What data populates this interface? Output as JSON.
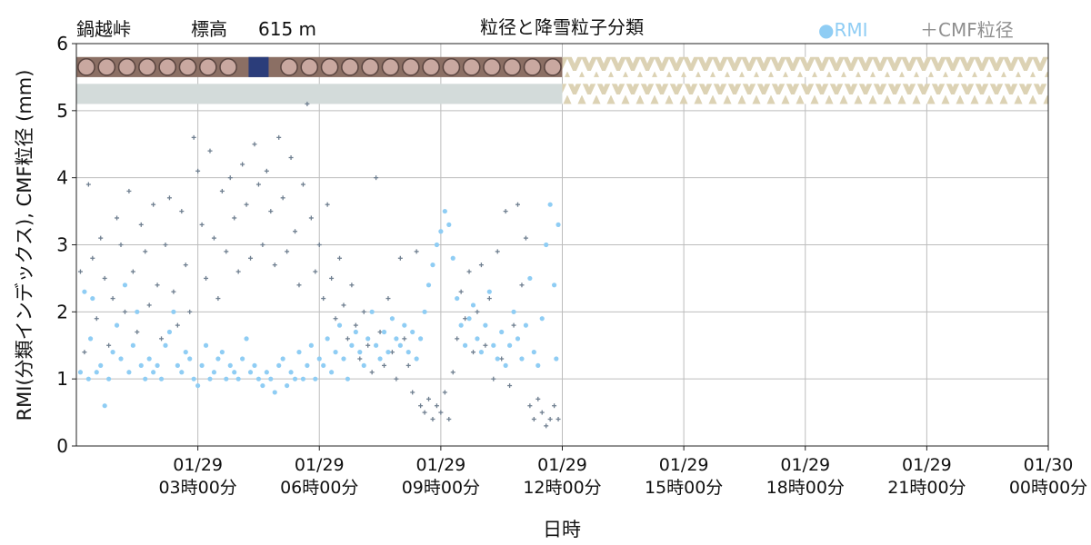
{
  "header": {
    "station": "鍋越峠",
    "elevation_label": "標高",
    "elevation_value": "615 m",
    "title": "粒径と降雪粒子分類",
    "legend_rmi": "●RMI",
    "legend_cmf": "＋CMF粒径"
  },
  "colors": {
    "rmi": "#8fcdf4",
    "cmf": "#6f7f90",
    "grid": "#bdbdbd",
    "graupel_band": "#8b6f64",
    "snow_icon": "#2b3d7a",
    "gray_band": "#d3dbda",
    "no_data_band": "#dcd2b4"
  },
  "chart_data": {
    "type": "scatter",
    "title": "粒径と降雪粒子分類",
    "xlabel": "日時",
    "ylabel": "RMI(分類インデックス), CMF粒径 (mm)",
    "x_range_hours": [
      0,
      24
    ],
    "ylim": [
      0,
      6
    ],
    "yticks": [
      "0",
      "1",
      "2",
      "3",
      "4",
      "5",
      "6"
    ],
    "xticks": [
      {
        "hours": 3,
        "date": "01/29",
        "time": "03時00分"
      },
      {
        "hours": 6,
        "date": "01/29",
        "time": "06時00分"
      },
      {
        "hours": 9,
        "date": "01/29",
        "time": "09時00分"
      },
      {
        "hours": 12,
        "date": "01/29",
        "time": "12時00分"
      },
      {
        "hours": 15,
        "date": "01/29",
        "time": "15時00分"
      },
      {
        "hours": 18,
        "date": "01/29",
        "time": "18時00分"
      },
      {
        "hours": 21,
        "date": "01/29",
        "time": "21時00分"
      },
      {
        "hours": 24,
        "date": "01/30",
        "time": "00時00分"
      }
    ],
    "grid": true,
    "legend_position": "top-right",
    "data_end_hours": 12,
    "graupel_strip": {
      "y_range": [
        5.5,
        5.8
      ],
      "snow_icon_hours": 4.5
    },
    "gray_strip": {
      "y_range": [
        5.1,
        5.4
      ]
    },
    "series": [
      {
        "name": "RMI",
        "marker": "dot",
        "points": [
          [
            0.1,
            1.1
          ],
          [
            0.2,
            2.3
          ],
          [
            0.3,
            1.0
          ],
          [
            0.35,
            1.6
          ],
          [
            0.4,
            2.2
          ],
          [
            0.5,
            1.1
          ],
          [
            0.6,
            1.2
          ],
          [
            0.7,
            0.6
          ],
          [
            0.8,
            1.0
          ],
          [
            0.9,
            1.4
          ],
          [
            1.0,
            1.8
          ],
          [
            1.1,
            1.3
          ],
          [
            1.2,
            2.4
          ],
          [
            1.3,
            1.1
          ],
          [
            1.4,
            1.5
          ],
          [
            1.5,
            2.0
          ],
          [
            1.6,
            1.2
          ],
          [
            1.7,
            1.0
          ],
          [
            1.8,
            1.3
          ],
          [
            1.9,
            1.1
          ],
          [
            2.0,
            1.2
          ],
          [
            2.1,
            1.0
          ],
          [
            2.2,
            1.5
          ],
          [
            2.3,
            1.7
          ],
          [
            2.4,
            2.0
          ],
          [
            2.5,
            1.2
          ],
          [
            2.6,
            1.1
          ],
          [
            2.7,
            1.4
          ],
          [
            2.8,
            1.3
          ],
          [
            2.9,
            1.0
          ],
          [
            3.0,
            0.9
          ],
          [
            3.1,
            1.2
          ],
          [
            3.2,
            1.5
          ],
          [
            3.3,
            1.0
          ],
          [
            3.4,
            1.1
          ],
          [
            3.5,
            1.3
          ],
          [
            3.6,
            1.4
          ],
          [
            3.7,
            1.0
          ],
          [
            3.8,
            1.2
          ],
          [
            3.9,
            1.1
          ],
          [
            4.0,
            1.0
          ],
          [
            4.1,
            1.3
          ],
          [
            4.2,
            1.6
          ],
          [
            4.3,
            1.1
          ],
          [
            4.4,
            1.2
          ],
          [
            4.5,
            1.0
          ],
          [
            4.6,
            0.9
          ],
          [
            4.7,
            1.1
          ],
          [
            4.8,
            1.0
          ],
          [
            4.9,
            0.8
          ],
          [
            5.0,
            1.2
          ],
          [
            5.1,
            1.3
          ],
          [
            5.2,
            0.9
          ],
          [
            5.3,
            1.1
          ],
          [
            5.4,
            1.0
          ],
          [
            5.5,
            1.4
          ],
          [
            5.6,
            1.0
          ],
          [
            5.7,
            1.2
          ],
          [
            5.8,
            1.5
          ],
          [
            5.9,
            1.0
          ],
          [
            6.0,
            1.3
          ],
          [
            6.1,
            1.2
          ],
          [
            6.2,
            1.6
          ],
          [
            6.3,
            1.1
          ],
          [
            6.4,
            1.4
          ],
          [
            6.5,
            1.8
          ],
          [
            6.6,
            1.3
          ],
          [
            6.7,
            1.0
          ],
          [
            6.8,
            1.5
          ],
          [
            6.9,
            1.7
          ],
          [
            7.0,
            1.4
          ],
          [
            7.1,
            1.2
          ],
          [
            7.2,
            1.6
          ],
          [
            7.3,
            2.0
          ],
          [
            7.4,
            1.5
          ],
          [
            7.5,
            1.3
          ],
          [
            7.6,
            1.7
          ],
          [
            7.7,
            1.4
          ],
          [
            7.8,
            1.9
          ],
          [
            7.9,
            1.6
          ],
          [
            8.0,
            1.5
          ],
          [
            8.1,
            1.8
          ],
          [
            8.2,
            1.4
          ],
          [
            8.3,
            1.7
          ],
          [
            8.4,
            1.3
          ],
          [
            8.5,
            1.6
          ],
          [
            8.6,
            2.0
          ],
          [
            8.7,
            2.4
          ],
          [
            8.8,
            2.7
          ],
          [
            8.9,
            3.0
          ],
          [
            9.0,
            3.2
          ],
          [
            9.1,
            3.5
          ],
          [
            9.2,
            3.3
          ],
          [
            9.3,
            2.8
          ],
          [
            9.4,
            2.2
          ],
          [
            9.5,
            1.8
          ],
          [
            9.6,
            1.5
          ],
          [
            9.7,
            1.9
          ],
          [
            9.8,
            2.1
          ],
          [
            9.9,
            1.6
          ],
          [
            10.0,
            1.4
          ],
          [
            10.1,
            1.8
          ],
          [
            10.2,
            2.3
          ],
          [
            10.3,
            1.5
          ],
          [
            10.4,
            1.3
          ],
          [
            10.5,
            1.7
          ],
          [
            10.6,
            1.2
          ],
          [
            10.7,
            1.5
          ],
          [
            10.8,
            2.0
          ],
          [
            10.9,
            1.6
          ],
          [
            11.0,
            1.3
          ],
          [
            11.1,
            1.8
          ],
          [
            11.2,
            2.5
          ],
          [
            11.3,
            1.4
          ],
          [
            11.4,
            1.2
          ],
          [
            11.5,
            1.9
          ],
          [
            11.6,
            3.0
          ],
          [
            11.7,
            3.6
          ],
          [
            11.8,
            2.4
          ],
          [
            11.85,
            1.3
          ],
          [
            11.9,
            3.3
          ]
        ]
      },
      {
        "name": "CMF粒径",
        "marker": "plus",
        "points": [
          [
            0.1,
            2.6
          ],
          [
            0.2,
            1.4
          ],
          [
            0.3,
            3.9
          ],
          [
            0.4,
            2.8
          ],
          [
            0.5,
            1.9
          ],
          [
            0.6,
            3.1
          ],
          [
            0.7,
            2.5
          ],
          [
            0.8,
            1.5
          ],
          [
            0.9,
            2.2
          ],
          [
            1.0,
            3.4
          ],
          [
            1.1,
            3.0
          ],
          [
            1.2,
            2.0
          ],
          [
            1.3,
            3.8
          ],
          [
            1.4,
            2.6
          ],
          [
            1.5,
            1.7
          ],
          [
            1.6,
            3.3
          ],
          [
            1.7,
            2.9
          ],
          [
            1.8,
            2.1
          ],
          [
            1.9,
            3.6
          ],
          [
            2.0,
            2.4
          ],
          [
            2.1,
            1.6
          ],
          [
            2.2,
            3.0
          ],
          [
            2.3,
            3.7
          ],
          [
            2.4,
            2.3
          ],
          [
            2.5,
            1.8
          ],
          [
            2.6,
            3.5
          ],
          [
            2.7,
            2.7
          ],
          [
            2.8,
            2.0
          ],
          [
            2.9,
            4.6
          ],
          [
            3.0,
            4.1
          ],
          [
            3.1,
            3.3
          ],
          [
            3.2,
            2.5
          ],
          [
            3.3,
            4.4
          ],
          [
            3.4,
            3.1
          ],
          [
            3.5,
            2.2
          ],
          [
            3.6,
            3.8
          ],
          [
            3.7,
            2.9
          ],
          [
            3.8,
            4.0
          ],
          [
            3.9,
            3.4
          ],
          [
            4.0,
            2.6
          ],
          [
            4.1,
            4.2
          ],
          [
            4.2,
            3.6
          ],
          [
            4.3,
            2.8
          ],
          [
            4.4,
            4.5
          ],
          [
            4.5,
            3.9
          ],
          [
            4.6,
            3.0
          ],
          [
            4.7,
            4.1
          ],
          [
            4.8,
            3.5
          ],
          [
            4.9,
            2.7
          ],
          [
            5.0,
            4.6
          ],
          [
            5.1,
            3.7
          ],
          [
            5.2,
            2.9
          ],
          [
            5.3,
            4.3
          ],
          [
            5.4,
            3.2
          ],
          [
            5.5,
            2.4
          ],
          [
            5.6,
            3.9
          ],
          [
            5.7,
            5.1
          ],
          [
            5.8,
            3.4
          ],
          [
            5.9,
            2.6
          ],
          [
            6.0,
            3.0
          ],
          [
            6.1,
            2.2
          ],
          [
            6.2,
            3.6
          ],
          [
            6.3,
            2.5
          ],
          [
            6.4,
            1.9
          ],
          [
            6.5,
            2.8
          ],
          [
            6.6,
            2.1
          ],
          [
            6.7,
            1.6
          ],
          [
            6.8,
            2.4
          ],
          [
            6.9,
            1.8
          ],
          [
            7.0,
            1.3
          ],
          [
            7.1,
            2.0
          ],
          [
            7.2,
            1.5
          ],
          [
            7.3,
            1.1
          ],
          [
            7.4,
            4.0
          ],
          [
            7.5,
            1.7
          ],
          [
            7.6,
            1.2
          ],
          [
            7.7,
            2.2
          ],
          [
            7.8,
            1.4
          ],
          [
            7.9,
            1.0
          ],
          [
            8.0,
            2.8
          ],
          [
            8.1,
            1.6
          ],
          [
            8.2,
            1.2
          ],
          [
            8.3,
            0.8
          ],
          [
            8.4,
            2.9
          ],
          [
            8.5,
            0.6
          ],
          [
            8.6,
            0.5
          ],
          [
            8.7,
            0.7
          ],
          [
            8.8,
            0.4
          ],
          [
            8.9,
            0.6
          ],
          [
            9.0,
            0.5
          ],
          [
            9.1,
            0.8
          ],
          [
            9.2,
            0.4
          ],
          [
            9.3,
            1.1
          ],
          [
            9.4,
            1.6
          ],
          [
            9.5,
            2.3
          ],
          [
            9.6,
            1.9
          ],
          [
            9.7,
            2.6
          ],
          [
            9.8,
            1.4
          ],
          [
            9.9,
            2.0
          ],
          [
            10.0,
            2.7
          ],
          [
            10.1,
            1.5
          ],
          [
            10.2,
            2.2
          ],
          [
            10.3,
            1.0
          ],
          [
            10.4,
            2.9
          ],
          [
            10.5,
            1.3
          ],
          [
            10.6,
            3.5
          ],
          [
            10.7,
            0.9
          ],
          [
            10.8,
            1.8
          ],
          [
            10.9,
            3.6
          ],
          [
            11.0,
            2.4
          ],
          [
            11.1,
            3.1
          ],
          [
            11.2,
            0.6
          ],
          [
            11.3,
            0.4
          ],
          [
            11.4,
            0.7
          ],
          [
            11.5,
            0.5
          ],
          [
            11.6,
            0.3
          ],
          [
            11.7,
            0.4
          ],
          [
            11.8,
            0.6
          ],
          [
            11.9,
            0.4
          ]
        ]
      }
    ]
  }
}
